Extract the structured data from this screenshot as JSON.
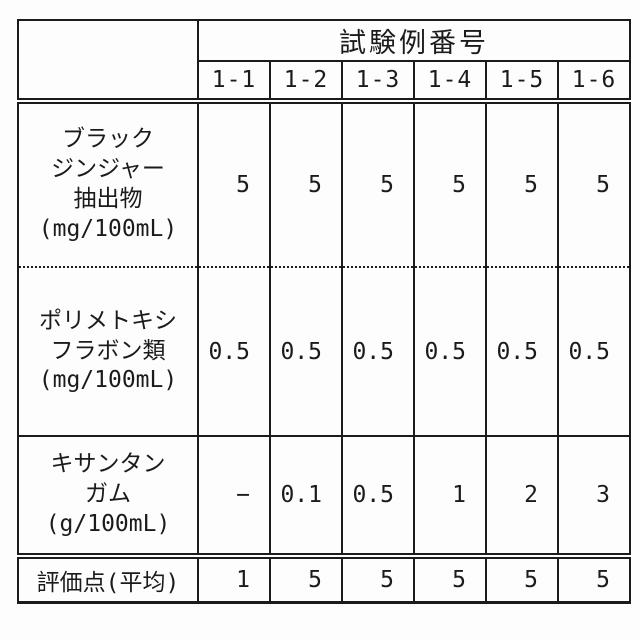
{
  "table": {
    "header": {
      "group_label": "試験例番号",
      "columns": [
        "1-1",
        "1-2",
        "1-3",
        "1-4",
        "1-5",
        "1-6"
      ]
    },
    "rows": [
      {
        "label": "ブラック\nジンジャー\n抽出物\n(mg/100mL)",
        "values": [
          "5",
          "5",
          "5",
          "5",
          "5",
          "5"
        ]
      },
      {
        "label": "ポリメトキシ\nフラボン類\n(mg/100mL)",
        "values": [
          "0.5",
          "0.5",
          "0.5",
          "0.5",
          "0.5",
          "0.5"
        ]
      },
      {
        "label": "キサンタン\nガム\n(g/100mL)",
        "values": [
          "−",
          "0.1",
          "0.5",
          "1",
          "2",
          "3"
        ]
      },
      {
        "label": "評価点(平均)",
        "values": [
          "1",
          "5",
          "5",
          "5",
          "5",
          "5"
        ]
      }
    ],
    "colors": {
      "line": "#1b1b1b",
      "background": "#fdfdfd"
    }
  }
}
